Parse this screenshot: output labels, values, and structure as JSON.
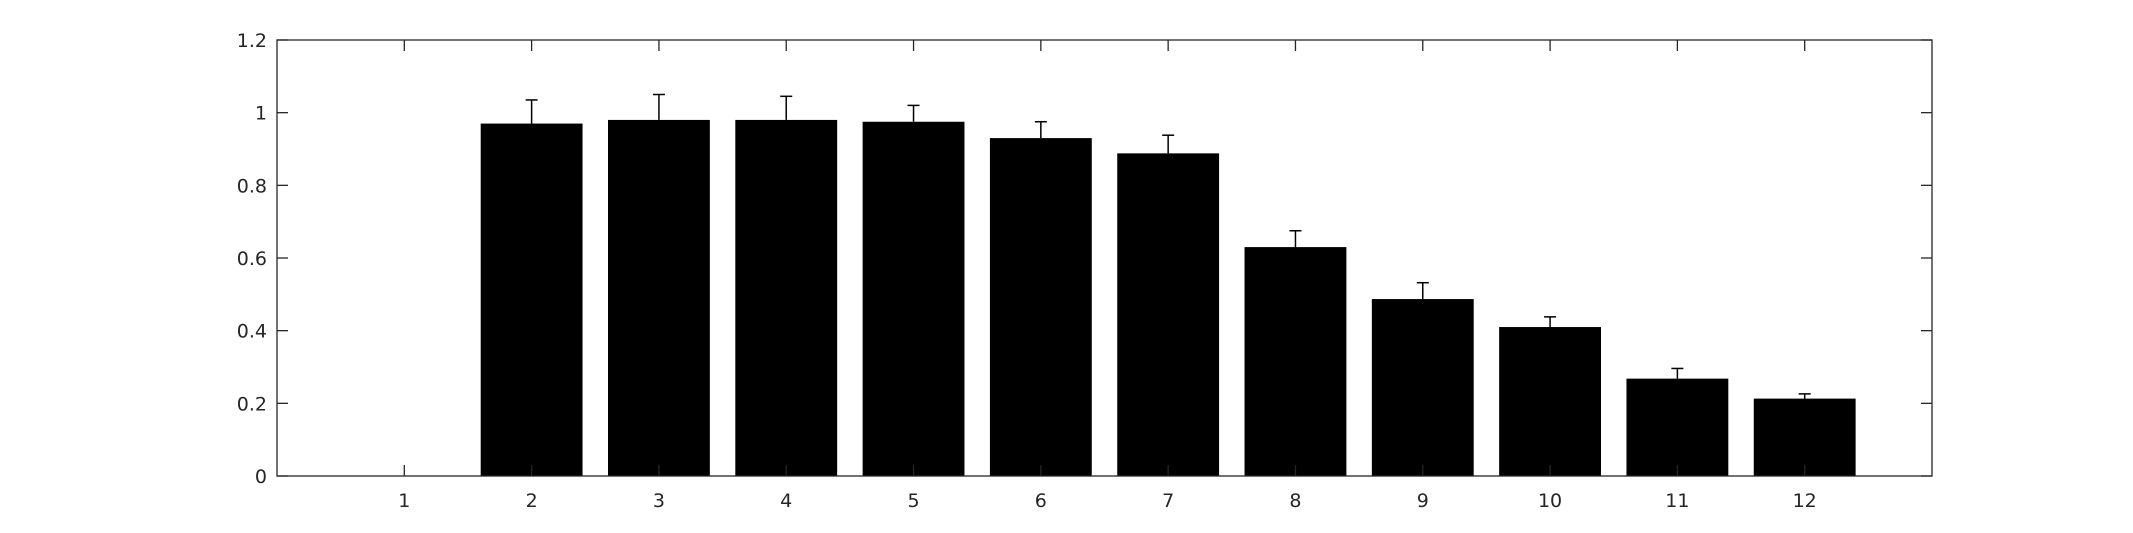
{
  "chart_data": {
    "type": "bar",
    "title": "",
    "xlabel": "",
    "ylabel": "",
    "categories": [
      "1",
      "2",
      "3",
      "4",
      "5",
      "6",
      "7",
      "8",
      "9",
      "10",
      "11",
      "12"
    ],
    "values": [
      0,
      0.97,
      0.98,
      0.98,
      0.975,
      0.93,
      0.888,
      0.63,
      0.487,
      0.41,
      0.268,
      0.213
    ],
    "error_upper": [
      0,
      0.065,
      0.07,
      0.065,
      0.045,
      0.045,
      0.05,
      0.045,
      0.045,
      0.028,
      0.028,
      0.013
    ],
    "ylim": [
      0,
      1.2
    ],
    "yticks": [
      0,
      0.2,
      0.4,
      0.6,
      0.8,
      1,
      1.2
    ],
    "ytick_labels": [
      "0",
      "0.2",
      "0.4",
      "0.6",
      "0.8",
      "1",
      "1.2"
    ],
    "xlim": [
      0,
      13
    ],
    "grid": false,
    "bar_color": "#000000",
    "axis_color": "#262626"
  }
}
